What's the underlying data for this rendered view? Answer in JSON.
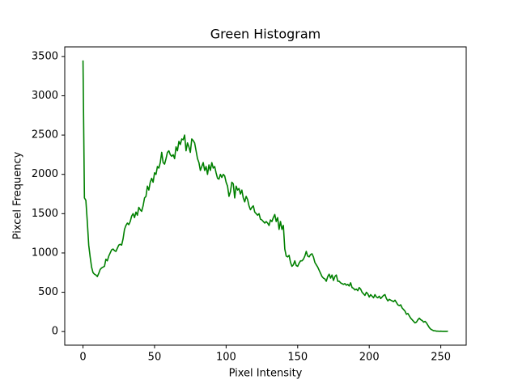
{
  "chart_data": {
    "type": "line",
    "title": "Green Histogram",
    "xlabel": "Pixel Intensity",
    "ylabel": "Pixcel Frequency",
    "color": "green",
    "x": [
      0,
      1,
      2,
      3,
      4,
      5,
      6,
      7,
      8,
      9,
      10,
      11,
      12,
      13,
      14,
      15,
      16,
      17,
      18,
      19,
      20,
      21,
      22,
      23,
      24,
      25,
      26,
      27,
      28,
      29,
      30,
      31,
      32,
      33,
      34,
      35,
      36,
      37,
      38,
      39,
      40,
      41,
      42,
      43,
      44,
      45,
      46,
      47,
      48,
      49,
      50,
      51,
      52,
      53,
      54,
      55,
      56,
      57,
      58,
      59,
      60,
      61,
      62,
      63,
      64,
      65,
      66,
      67,
      68,
      69,
      70,
      71,
      72,
      73,
      74,
      75,
      76,
      77,
      78,
      79,
      80,
      81,
      82,
      83,
      84,
      85,
      86,
      87,
      88,
      89,
      90,
      91,
      92,
      93,
      94,
      95,
      96,
      97,
      98,
      99,
      100,
      101,
      102,
      103,
      104,
      105,
      106,
      107,
      108,
      109,
      110,
      111,
      112,
      113,
      114,
      115,
      116,
      117,
      118,
      119,
      120,
      121,
      122,
      123,
      124,
      125,
      126,
      127,
      128,
      129,
      130,
      131,
      132,
      133,
      134,
      135,
      136,
      137,
      138,
      139,
      140,
      141,
      142,
      143,
      144,
      145,
      146,
      147,
      148,
      149,
      150,
      151,
      152,
      153,
      154,
      155,
      156,
      157,
      158,
      159,
      160,
      161,
      162,
      163,
      164,
      165,
      166,
      167,
      168,
      169,
      170,
      171,
      172,
      173,
      174,
      175,
      176,
      177,
      178,
      179,
      180,
      181,
      182,
      183,
      184,
      185,
      186,
      187,
      188,
      189,
      190,
      191,
      192,
      193,
      194,
      195,
      196,
      197,
      198,
      199,
      200,
      201,
      202,
      203,
      204,
      205,
      206,
      207,
      208,
      209,
      210,
      211,
      212,
      213,
      214,
      215,
      216,
      217,
      218,
      219,
      220,
      221,
      222,
      223,
      224,
      225,
      226,
      227,
      228,
      229,
      230,
      231,
      232,
      233,
      234,
      235,
      236,
      237,
      238,
      239,
      240,
      241,
      242,
      243,
      244,
      245,
      246,
      247,
      248,
      249,
      250,
      251,
      252,
      253,
      254,
      255
    ],
    "values": [
      3450,
      1700,
      1670,
      1400,
      1100,
      950,
      820,
      750,
      730,
      720,
      700,
      740,
      790,
      810,
      820,
      830,
      920,
      900,
      960,
      1000,
      1040,
      1050,
      1030,
      1020,
      1060,
      1100,
      1110,
      1100,
      1180,
      1300,
      1350,
      1380,
      1360,
      1400,
      1470,
      1500,
      1450,
      1520,
      1480,
      1580,
      1550,
      1530,
      1600,
      1700,
      1720,
      1850,
      1800,
      1900,
      1950,
      1900,
      2020,
      2000,
      2100,
      2080,
      2150,
      2280,
      2150,
      2130,
      2200,
      2280,
      2300,
      2250,
      2230,
      2250,
      2200,
      2350,
      2300,
      2420,
      2380,
      2450,
      2440,
      2500,
      2300,
      2400,
      2350,
      2280,
      2450,
      2430,
      2400,
      2300,
      2200,
      2150,
      2050,
      2100,
      2150,
      2050,
      2100,
      2000,
      2120,
      2050,
      2150,
      2080,
      2100,
      2020,
      1950,
      1940,
      2000,
      1960,
      2000,
      1980,
      1900,
      1850,
      1720,
      1780,
      1900,
      1880,
      1700,
      1850,
      1800,
      1820,
      1750,
      1800,
      1700,
      1650,
      1720,
      1680,
      1600,
      1550,
      1580,
      1600,
      1520,
      1500,
      1480,
      1500,
      1430,
      1420,
      1400,
      1380,
      1400,
      1380,
      1350,
      1420,
      1400,
      1450,
      1490,
      1400,
      1450,
      1300,
      1400,
      1300,
      1350,
      1050,
      960,
      950,
      970,
      880,
      830,
      850,
      900,
      840,
      830,
      870,
      900,
      900,
      920,
      960,
      1020,
      960,
      950,
      980,
      990,
      950,
      880,
      850,
      820,
      780,
      740,
      700,
      680,
      670,
      640,
      700,
      730,
      680,
      720,
      650,
      700,
      720,
      640,
      640,
      620,
      610,
      600,
      610,
      590,
      600,
      580,
      620,
      560,
      550,
      530,
      540,
      520,
      560,
      540,
      500,
      480,
      460,
      500,
      480,
      440,
      470,
      450,
      430,
      470,
      440,
      430,
      450,
      420,
      440,
      460,
      470,
      420,
      390,
      410,
      400,
      390,
      380,
      400,
      370,
      340,
      330,
      340,
      300,
      280,
      260,
      220,
      230,
      200,
      170,
      150,
      130,
      110,
      120,
      150,
      170,
      150,
      140,
      120,
      130,
      110,
      80,
      50,
      30,
      20,
      10,
      10,
      5,
      5,
      3,
      5,
      3,
      2,
      3,
      2,
      5
    ],
    "xlim": [
      -12.75,
      267.75
    ],
    "xticks": [
      0,
      50,
      100,
      150,
      200,
      250
    ],
    "ylim": [
      -173,
      3622
    ],
    "yticks": [
      0,
      500,
      1000,
      1500,
      2000,
      2500,
      3000,
      3500
    ]
  }
}
